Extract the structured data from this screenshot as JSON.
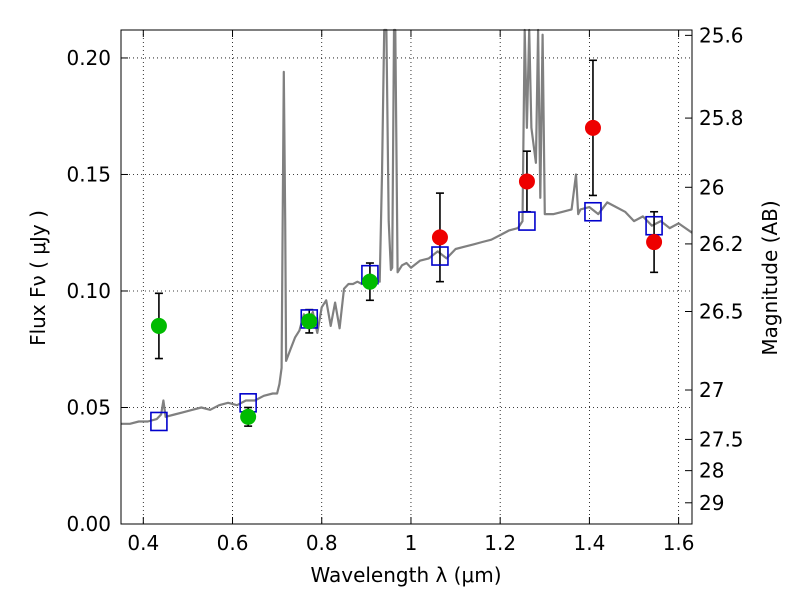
{
  "chart_data": {
    "type": "scatter",
    "xlabel": "Wavelength  λ (μm)",
    "ylabel": "Flux  Fν  ( μJy )",
    "y2label": "Magnitude (AB)",
    "xlim": [
      0.35,
      1.63
    ],
    "ylim": [
      0.0,
      0.212
    ],
    "grid": true,
    "x_ticks": [
      {
        "value": 0.4,
        "label": "0.4"
      },
      {
        "value": 0.6,
        "label": "0.6"
      },
      {
        "value": 0.8,
        "label": "0.8"
      },
      {
        "value": 1.0,
        "label": "1"
      },
      {
        "value": 1.2,
        "label": "1.2"
      },
      {
        "value": 1.4,
        "label": "1.4"
      },
      {
        "value": 1.6,
        "label": "1.6"
      }
    ],
    "y_ticks": [
      {
        "value": 0.0,
        "label": "0.00"
      },
      {
        "value": 0.05,
        "label": "0.05"
      },
      {
        "value": 0.1,
        "label": "0.10"
      },
      {
        "value": 0.15,
        "label": "0.15"
      },
      {
        "value": 0.2,
        "label": "0.20"
      }
    ],
    "magnitude_ticks": [
      {
        "value": 0.2097,
        "label": "25.6"
      },
      {
        "value": 0.1742,
        "label": "25.8"
      },
      {
        "value": 0.1445,
        "label": "26"
      },
      {
        "value": 0.1202,
        "label": "26.2"
      },
      {
        "value": 0.0912,
        "label": "26.5"
      },
      {
        "value": 0.0575,
        "label": "27"
      },
      {
        "value": 0.0363,
        "label": "27.5"
      },
      {
        "value": 0.0229,
        "label": "28"
      },
      {
        "value": 0.0091,
        "label": "29"
      }
    ],
    "colors": {
      "spectrum": "#808080",
      "model_points": "#0000cc",
      "green_points": "#00bb00",
      "red_points": "#ee0000",
      "error_bars": "#000000"
    },
    "series": [
      {
        "kind": "spectrum",
        "x": [
          0.35,
          0.37,
          0.39,
          0.41,
          0.43,
          0.44,
          0.445,
          0.45,
          0.47,
          0.49,
          0.51,
          0.53,
          0.55,
          0.57,
          0.59,
          0.61,
          0.63,
          0.65,
          0.67,
          0.69,
          0.7,
          0.705,
          0.71,
          0.712,
          0.715,
          0.718,
          0.72,
          0.73,
          0.74,
          0.75,
          0.76,
          0.77,
          0.78,
          0.79,
          0.8,
          0.81,
          0.82,
          0.83,
          0.84,
          0.85,
          0.86,
          0.87,
          0.88,
          0.89,
          0.9,
          0.91,
          0.92,
          0.93,
          0.935,
          0.94,
          0.945,
          0.95,
          0.955,
          0.958,
          0.962,
          0.965,
          0.97,
          0.98,
          0.99,
          1.0,
          1.02,
          1.04,
          1.06,
          1.08,
          1.1,
          1.12,
          1.14,
          1.16,
          1.18,
          1.2,
          1.22,
          1.24,
          1.25,
          1.255,
          1.26,
          1.265,
          1.27,
          1.28,
          1.285,
          1.29,
          1.295,
          1.3,
          1.32,
          1.34,
          1.36,
          1.37,
          1.375,
          1.38,
          1.4,
          1.42,
          1.44,
          1.46,
          1.48,
          1.5,
          1.52,
          1.54,
          1.56,
          1.58,
          1.6,
          1.63
        ],
        "y": [
          0.043,
          0.043,
          0.044,
          0.044,
          0.045,
          0.047,
          0.053,
          0.046,
          0.047,
          0.048,
          0.049,
          0.05,
          0.049,
          0.051,
          0.052,
          0.051,
          0.053,
          0.053,
          0.055,
          0.056,
          0.056,
          0.06,
          0.067,
          0.12,
          0.194,
          0.13,
          0.07,
          0.075,
          0.08,
          0.083,
          0.09,
          0.087,
          0.091,
          0.082,
          0.093,
          0.096,
          0.085,
          0.095,
          0.084,
          0.101,
          0.103,
          0.103,
          0.104,
          0.103,
          0.106,
          0.107,
          0.105,
          0.104,
          0.15,
          0.212,
          0.212,
          0.13,
          0.109,
          0.11,
          0.212,
          0.212,
          0.108,
          0.111,
          0.112,
          0.11,
          0.113,
          0.114,
          0.117,
          0.114,
          0.118,
          0.119,
          0.12,
          0.121,
          0.122,
          0.124,
          0.126,
          0.127,
          0.13,
          0.212,
          0.17,
          0.212,
          0.17,
          0.155,
          0.212,
          0.14,
          0.21,
          0.133,
          0.133,
          0.134,
          0.135,
          0.15,
          0.133,
          0.135,
          0.136,
          0.133,
          0.138,
          0.136,
          0.134,
          0.13,
          0.132,
          0.128,
          0.13,
          0.127,
          0.129,
          0.125
        ]
      },
      {
        "kind": "model",
        "marker": "square",
        "x": [
          0.435,
          0.635,
          0.772,
          0.908,
          1.065,
          1.26,
          1.408,
          1.545
        ],
        "y": [
          0.044,
          0.052,
          0.088,
          0.107,
          0.115,
          0.13,
          0.134,
          0.128
        ]
      },
      {
        "kind": "observed",
        "marker": "circle",
        "x": [
          0.435,
          0.635,
          0.772,
          0.908
        ],
        "y": [
          0.085,
          0.046,
          0.087,
          0.104
        ],
        "err": [
          0.014,
          0.004,
          0.005,
          0.008
        ]
      },
      {
        "kind": "observed",
        "marker": "circle",
        "x": [
          1.065,
          1.26,
          1.408,
          1.545
        ],
        "y": [
          0.123,
          0.147,
          0.17,
          0.121
        ],
        "err": [
          0.019,
          0.013,
          0.029,
          0.013
        ]
      }
    ]
  }
}
